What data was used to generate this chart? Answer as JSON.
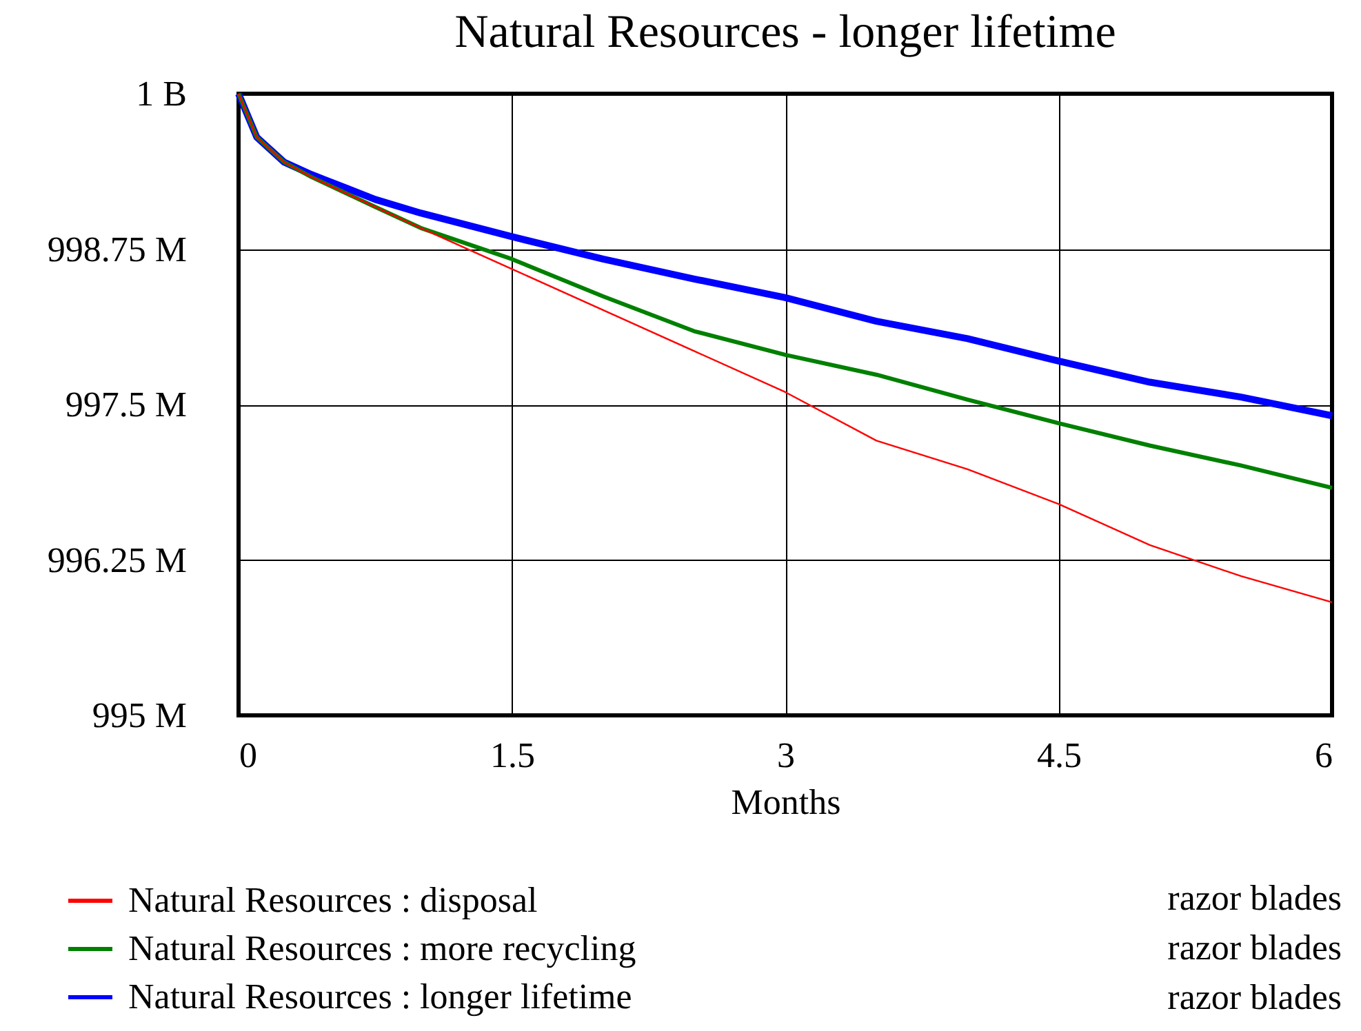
{
  "chart_data": {
    "type": "line",
    "title": "Natural Resources - longer lifetime",
    "xlabel": "Months",
    "x": [
      0,
      0.1,
      0.25,
      0.4,
      0.75,
      1,
      1.5,
      2,
      2.5,
      3,
      3.5,
      4,
      4.5,
      5,
      5.5,
      6
    ],
    "series": [
      {
        "name": "Natural Resources : disposal",
        "color": "#ff0000",
        "values": [
          1000000000,
          999650000,
          999450000,
          999330000,
          999090000,
          998920000,
          998590000,
          998260000,
          997930000,
          997600000,
          997210000,
          996980000,
          996700000,
          996370000,
          996120000,
          995910000
        ]
      },
      {
        "name": "Natural Resources : more recycling",
        "color": "#008000",
        "values": [
          1000000000,
          999650000,
          999450000,
          999330000,
          999090000,
          998920000,
          998670000,
          998370000,
          998090000,
          997900000,
          997740000,
          997540000,
          997350000,
          997170000,
          997010000,
          996830000
        ]
      },
      {
        "name": "Natural Resources : longer lifetime",
        "color": "#0000ff",
        "values": [
          1000000000,
          999650000,
          999450000,
          999350000,
          999150000,
          999040000,
          998850000,
          998670000,
          998510000,
          998360000,
          998170000,
          998030000,
          997850000,
          997680000,
          997560000,
          997410000
        ]
      }
    ],
    "annotations": [
      "razor blades",
      "razor blades",
      "razor blades"
    ],
    "xlim": [
      0,
      6
    ],
    "xticks": [
      0,
      1.5,
      3,
      4.5,
      6
    ],
    "ylim": [
      995000000,
      1000000000
    ],
    "yticks": [
      {
        "value": 995000000,
        "label": "995 M"
      },
      {
        "value": 996250000,
        "label": "996.25 M"
      },
      {
        "value": 997500000,
        "label": "997.5 M"
      },
      {
        "value": 998750000,
        "label": "998.75 M"
      },
      {
        "value": 1000000000,
        "label": "1 B"
      }
    ],
    "grid": true,
    "legend": "bottom",
    "line_style": "solid",
    "marker": "none"
  }
}
